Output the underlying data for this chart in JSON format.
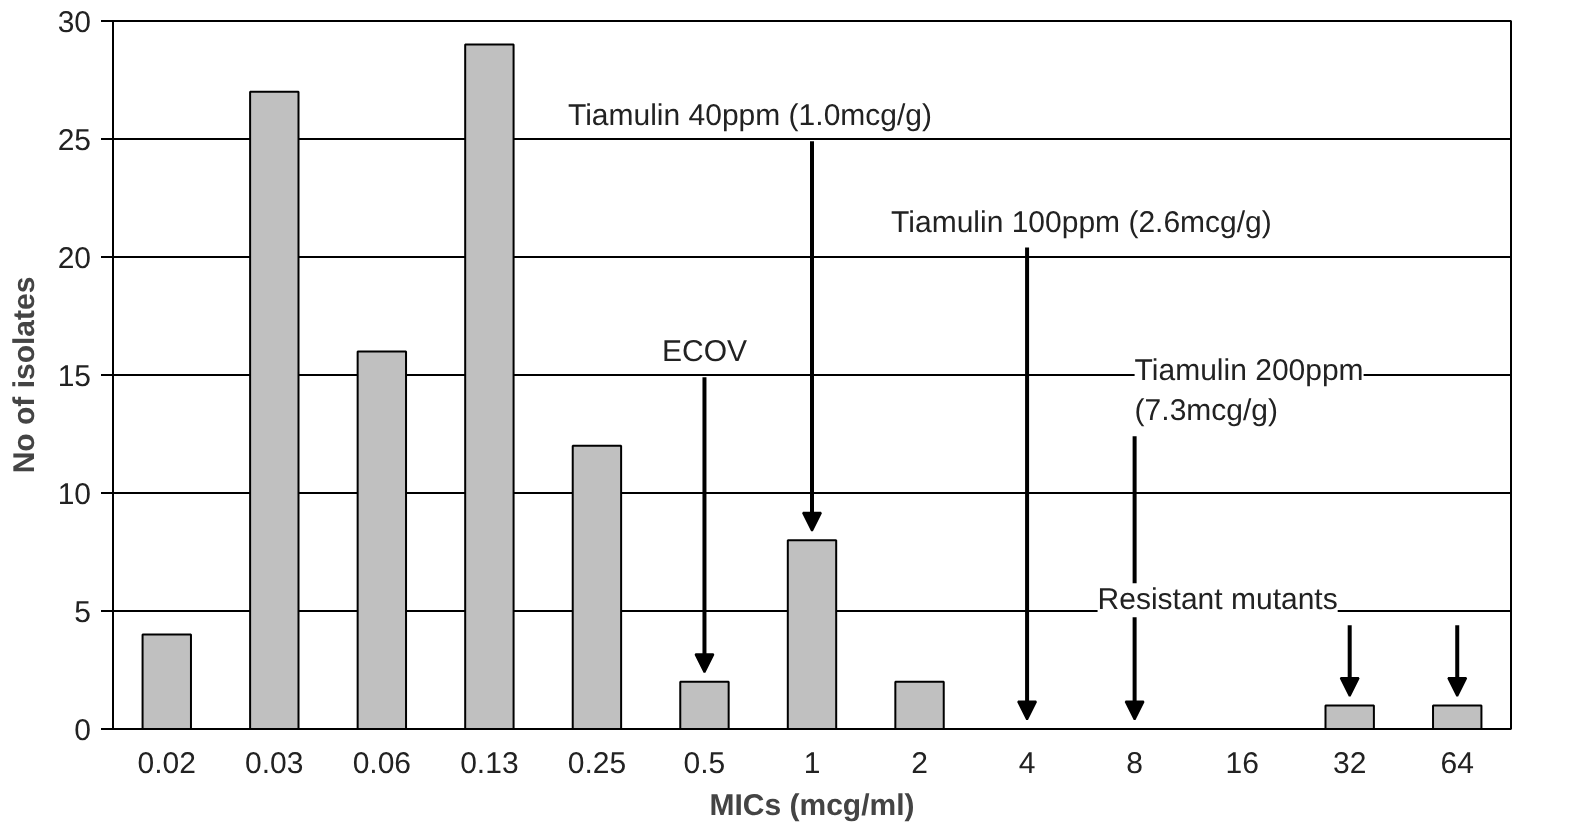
{
  "chart_data": {
    "type": "bar",
    "xlabel": "MICs (mcg/ml)",
    "ylabel": "No of isolates",
    "categories": [
      "0.02",
      "0.03",
      "0.06",
      "0.13",
      "0.25",
      "0.5",
      "1",
      "2",
      "4",
      "8",
      "16",
      "32",
      "64"
    ],
    "values": [
      4,
      27,
      16,
      29,
      12,
      2,
      8,
      2,
      0,
      0,
      0,
      1,
      1
    ],
    "color": "#c0c0c0",
    "ylim": [
      0,
      30
    ],
    "yticks": [
      0,
      5,
      10,
      15,
      20,
      25,
      30
    ],
    "grid": "y",
    "annotations": [
      {
        "text": "ECOV",
        "x": "0.5",
        "y": 2
      },
      {
        "text": "Tiamulin 40ppm (1.0mcg/g)",
        "x": "1",
        "y": 8
      },
      {
        "text": "Tiamulin 100ppm (2.6mcg/g)",
        "x": "4",
        "y": 0
      },
      {
        "text": "Tiamulin 200ppm\n(7.3mcg/g)",
        "x": "8",
        "y": 0
      },
      {
        "text": "Resistant mutants",
        "x": "32",
        "y": 1
      }
    ]
  }
}
